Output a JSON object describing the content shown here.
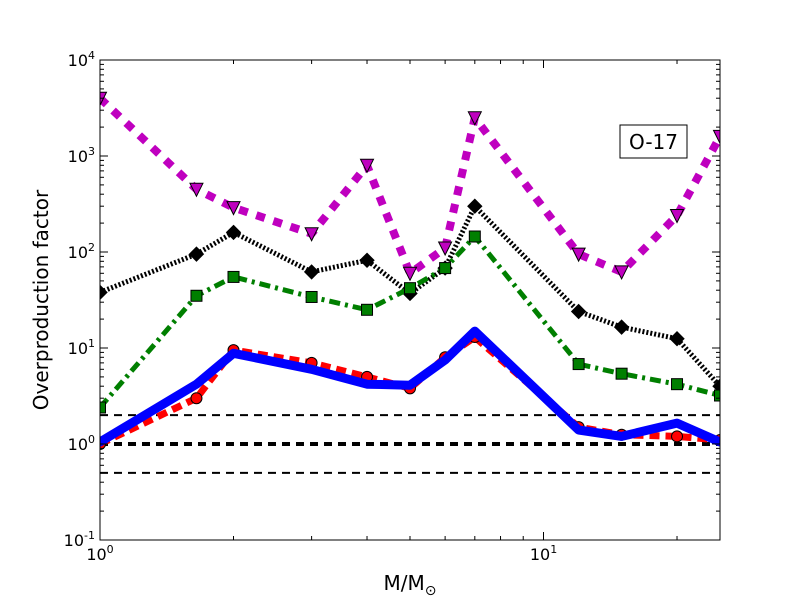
{
  "chart_data": {
    "type": "line",
    "xscale": "log",
    "yscale": "log",
    "xlim": [
      1,
      25
    ],
    "ylim": [
      0.1,
      10000
    ],
    "xlabel_main": "M/M",
    "xlabel_sub": "⊙",
    "ylabel": "Overproduction factor",
    "annotation": "O-17",
    "x_ticks": [
      {
        "value": 1,
        "base": "10",
        "exp": "0"
      },
      {
        "value": 10,
        "base": "10",
        "exp": "1"
      }
    ],
    "y_ticks": [
      {
        "value": 0.1,
        "base": "10",
        "exp": "-1"
      },
      {
        "value": 1,
        "base": "10",
        "exp": "0"
      },
      {
        "value": 10,
        "base": "10",
        "exp": "1"
      },
      {
        "value": 100,
        "base": "10",
        "exp": "2"
      },
      {
        "value": 1000,
        "base": "10",
        "exp": "3"
      },
      {
        "value": 10000,
        "base": "10",
        "exp": "4"
      }
    ],
    "reference_lines": [
      {
        "y": 2.0,
        "width": 2
      },
      {
        "y": 1.0,
        "width": 4
      },
      {
        "y": 0.5,
        "width": 2
      }
    ],
    "series": [
      {
        "color": "#bf00bf",
        "marker": "triangle-down",
        "dash": "9,9",
        "width": 8,
        "x": [
          1.0,
          1.65,
          2.0,
          3.0,
          4.0,
          5.0,
          6.0,
          7.0,
          12.0,
          15.0,
          20.0,
          25.0
        ],
        "y": [
          4000,
          450,
          290,
          155,
          800,
          60,
          110,
          2500,
          95,
          62,
          240,
          1600
        ]
      },
      {
        "color": "#000000",
        "marker": "diamond",
        "dash": "2,2",
        "width": 5,
        "x": [
          1.0,
          1.65,
          2.0,
          3.0,
          4.0,
          5.0,
          6.0,
          7.0,
          12.0,
          15.0,
          20.0,
          25.0
        ],
        "y": [
          38,
          95,
          160,
          62,
          82,
          37,
          68,
          300,
          24,
          16.5,
          12.5,
          4.0
        ]
      },
      {
        "color": "#007f00",
        "marker": "square",
        "dash": "11,5,3,5",
        "width": 5,
        "x": [
          1.0,
          1.65,
          2.0,
          3.0,
          4.0,
          5.0,
          6.0,
          7.0,
          12.0,
          15.0,
          20.0,
          25.0
        ],
        "y": [
          2.4,
          35,
          55,
          34,
          25,
          42,
          68,
          145,
          6.8,
          5.4,
          4.2,
          3.2
        ]
      },
      {
        "color": "#ff0000",
        "marker": "circle",
        "dash": "10,6",
        "width": 7,
        "x": [
          1.0,
          1.65,
          2.0,
          3.0,
          4.0,
          5.0,
          6.0,
          7.0,
          12.0,
          15.0,
          20.0,
          25.0
        ],
        "y": [
          1.0,
          3.0,
          9.5,
          7.0,
          5.0,
          3.8,
          8.0,
          13,
          1.5,
          1.25,
          1.2,
          1.1
        ]
      },
      {
        "color": "#0000ff",
        "marker": "none",
        "dash": "",
        "width": 9,
        "x": [
          1.0,
          1.65,
          2.0,
          3.0,
          4.0,
          5.0,
          6.0,
          7.0,
          12.0,
          15.0,
          20.0,
          25.0
        ],
        "y": [
          1.05,
          4.2,
          8.8,
          6.0,
          4.2,
          4.1,
          7.5,
          15,
          1.4,
          1.2,
          1.65,
          1.05
        ]
      }
    ]
  }
}
